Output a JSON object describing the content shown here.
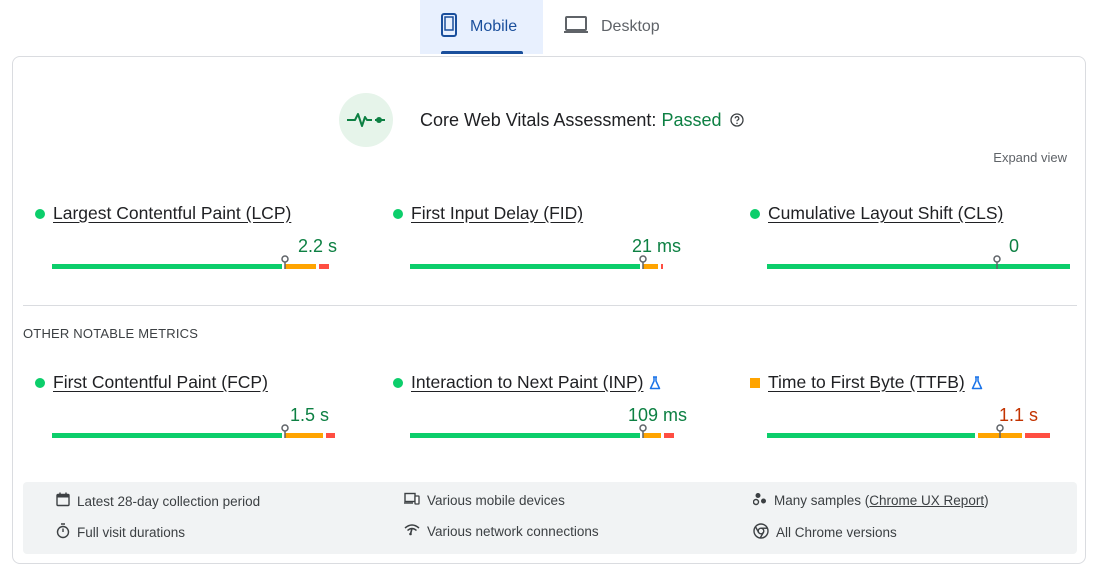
{
  "tabs": [
    {
      "label": "Mobile",
      "icon": "smartphone-icon",
      "active": true
    },
    {
      "label": "Desktop",
      "icon": "laptop-icon",
      "active": false
    }
  ],
  "assessment": {
    "label": "Core Web Vitals Assessment:",
    "status": "Passed",
    "icon": "heartbeat-icon",
    "help_icon": "help-circle-icon"
  },
  "expand_view": "Expand view",
  "core_metrics": [
    {
      "name": "Largest Contentful Paint (LCP)",
      "value": "2.2 s",
      "rating": "good",
      "marker_fraction": 0.75,
      "distribution": {
        "good": 0.75,
        "needs_improvement": 0.11,
        "poor": 0.04
      }
    },
    {
      "name": "First Input Delay (FID)",
      "value": "21 ms",
      "rating": "good",
      "marker_fraction": 0.75,
      "distribution": {
        "good": 0.75,
        "needs_improvement": 0.06,
        "poor": 0.01
      }
    },
    {
      "name": "Cumulative Layout Shift (CLS)",
      "value": "0",
      "rating": "good",
      "marker_fraction": 0.75,
      "distribution": {
        "good": 1.0,
        "needs_improvement": 0.0,
        "poor": 0.0
      }
    }
  ],
  "other_heading": "OTHER NOTABLE METRICS",
  "other_metrics": [
    {
      "name": "First Contentful Paint (FCP)",
      "value": "1.5 s",
      "rating": "good",
      "experimental": false,
      "marker_fraction": 0.75,
      "distribution": {
        "good": 0.75,
        "needs_improvement": 0.13,
        "poor": 0.04
      }
    },
    {
      "name": "Interaction to Next Paint (INP)",
      "value": "109 ms",
      "rating": "good",
      "experimental": true,
      "marker_fraction": 0.75,
      "distribution": {
        "good": 0.75,
        "needs_improvement": 0.07,
        "poor": 0.04
      }
    },
    {
      "name": "Time to First Byte (TTFB)",
      "value": "1.1 s",
      "rating": "needs_improvement",
      "experimental": true,
      "marker_fraction": 0.75,
      "distribution": {
        "good": 0.68,
        "needs_improvement": 0.15,
        "poor": 0.09
      }
    }
  ],
  "footer": {
    "collection_period": "Latest 28-day collection period",
    "devices": "Various mobile devices",
    "samples_prefix": "Many samples (",
    "samples_link": "Chrome UX Report",
    "samples_suffix": ")",
    "visit_durations": "Full visit durations",
    "network": "Various network connections",
    "chrome_versions": "All Chrome versions"
  },
  "colors": {
    "good": "#0cce6b",
    "needs_improvement": "#ffa400",
    "poor": "#ff4e42",
    "good_text": "#0d8043",
    "needs_improvement_text": "#c33300",
    "tab_active": "#1a4f9c"
  }
}
